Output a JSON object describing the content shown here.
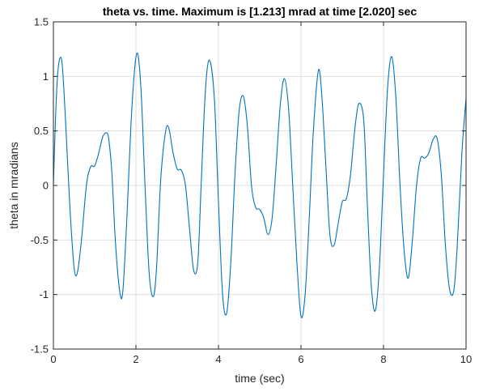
{
  "chart_data": {
    "type": "line",
    "title": "theta vs. time. Maximum is [1.213] mrad at time [2.020] sec",
    "xlabel": "time (sec)",
    "ylabel": "theta in mradians",
    "xlim": [
      0,
      10
    ],
    "ylim": [
      -1.5,
      1.5
    ],
    "xticks": [
      0,
      2,
      4,
      6,
      8,
      10
    ],
    "xtick_labels": [
      "0",
      "2",
      "4",
      "6",
      "8",
      "10"
    ],
    "yticks": [
      -1.5,
      -1,
      -0.5,
      0,
      0.5,
      1,
      1.5
    ],
    "ytick_labels": [
      "-1.5",
      "-1",
      "-0.5",
      "0",
      "0.5",
      "1",
      "1.5"
    ],
    "grid": true,
    "line_color": "#0072BD",
    "series": [
      {
        "x": [
          0,
          0.05,
          0.1,
          0.16,
          0.22,
          0.3,
          0.4,
          0.5,
          0.58,
          0.68,
          0.8,
          0.9,
          1.0,
          1.1,
          1.2,
          1.3,
          1.35,
          1.42,
          1.5,
          1.6,
          1.68,
          1.78,
          1.9,
          2.02,
          2.12,
          2.22,
          2.32,
          2.42,
          2.5,
          2.6,
          2.72,
          2.8,
          2.9,
          3.0,
          3.1,
          3.2,
          3.3,
          3.4,
          3.5,
          3.58,
          3.68,
          3.78,
          3.9,
          4.0,
          4.1,
          4.2,
          4.3,
          4.4,
          4.5,
          4.6,
          4.7,
          4.8,
          4.9,
          5.0,
          5.1,
          5.2,
          5.3,
          5.4,
          5.5,
          5.6,
          5.7,
          5.8,
          5.9,
          6.0,
          6.1,
          6.2,
          6.3,
          6.42,
          6.5,
          6.6,
          6.7,
          6.8,
          6.9,
          7.0,
          7.1,
          7.2,
          7.3,
          7.4,
          7.52,
          7.6,
          7.7,
          7.8,
          7.9,
          8.0,
          8.1,
          8.2,
          8.3,
          8.4,
          8.5,
          8.6,
          8.7,
          8.8,
          8.9,
          9.0,
          9.1,
          9.2,
          9.3,
          9.4,
          9.5,
          9.6,
          9.7,
          9.78,
          9.9,
          10.0
        ],
        "y": [
          0,
          0.6,
          1.0,
          1.17,
          1.08,
          0.55,
          -0.2,
          -0.75,
          -0.8,
          -0.5,
          0.0,
          0.17,
          0.18,
          0.3,
          0.45,
          0.48,
          0.4,
          0.1,
          -0.5,
          -0.95,
          -0.98,
          -0.3,
          0.7,
          1.21,
          0.9,
          0.0,
          -0.8,
          -1.02,
          -0.75,
          0.05,
          0.5,
          0.52,
          0.3,
          0.15,
          0.14,
          0.0,
          -0.4,
          -0.78,
          -0.7,
          0.0,
          0.85,
          1.15,
          0.8,
          -0.15,
          -1.0,
          -1.17,
          -0.7,
          0.1,
          0.68,
          0.82,
          0.55,
          0.0,
          -0.2,
          -0.22,
          -0.3,
          -0.45,
          -0.3,
          0.2,
          0.75,
          0.98,
          0.7,
          0.0,
          -0.7,
          -1.2,
          -1.0,
          -0.3,
          0.5,
          1.05,
          0.85,
          0.2,
          -0.45,
          -0.55,
          -0.35,
          -0.15,
          -0.12,
          0.1,
          0.5,
          0.75,
          0.6,
          -0.1,
          -0.9,
          -1.15,
          -0.75,
          0.1,
          0.9,
          1.18,
          0.8,
          0.0,
          -0.6,
          -0.85,
          -0.5,
          0.0,
          0.25,
          0.25,
          0.3,
          0.42,
          0.43,
          0.1,
          -0.55,
          -0.95,
          -0.97,
          -0.6,
          0.3,
          0.8
        ]
      }
    ]
  }
}
